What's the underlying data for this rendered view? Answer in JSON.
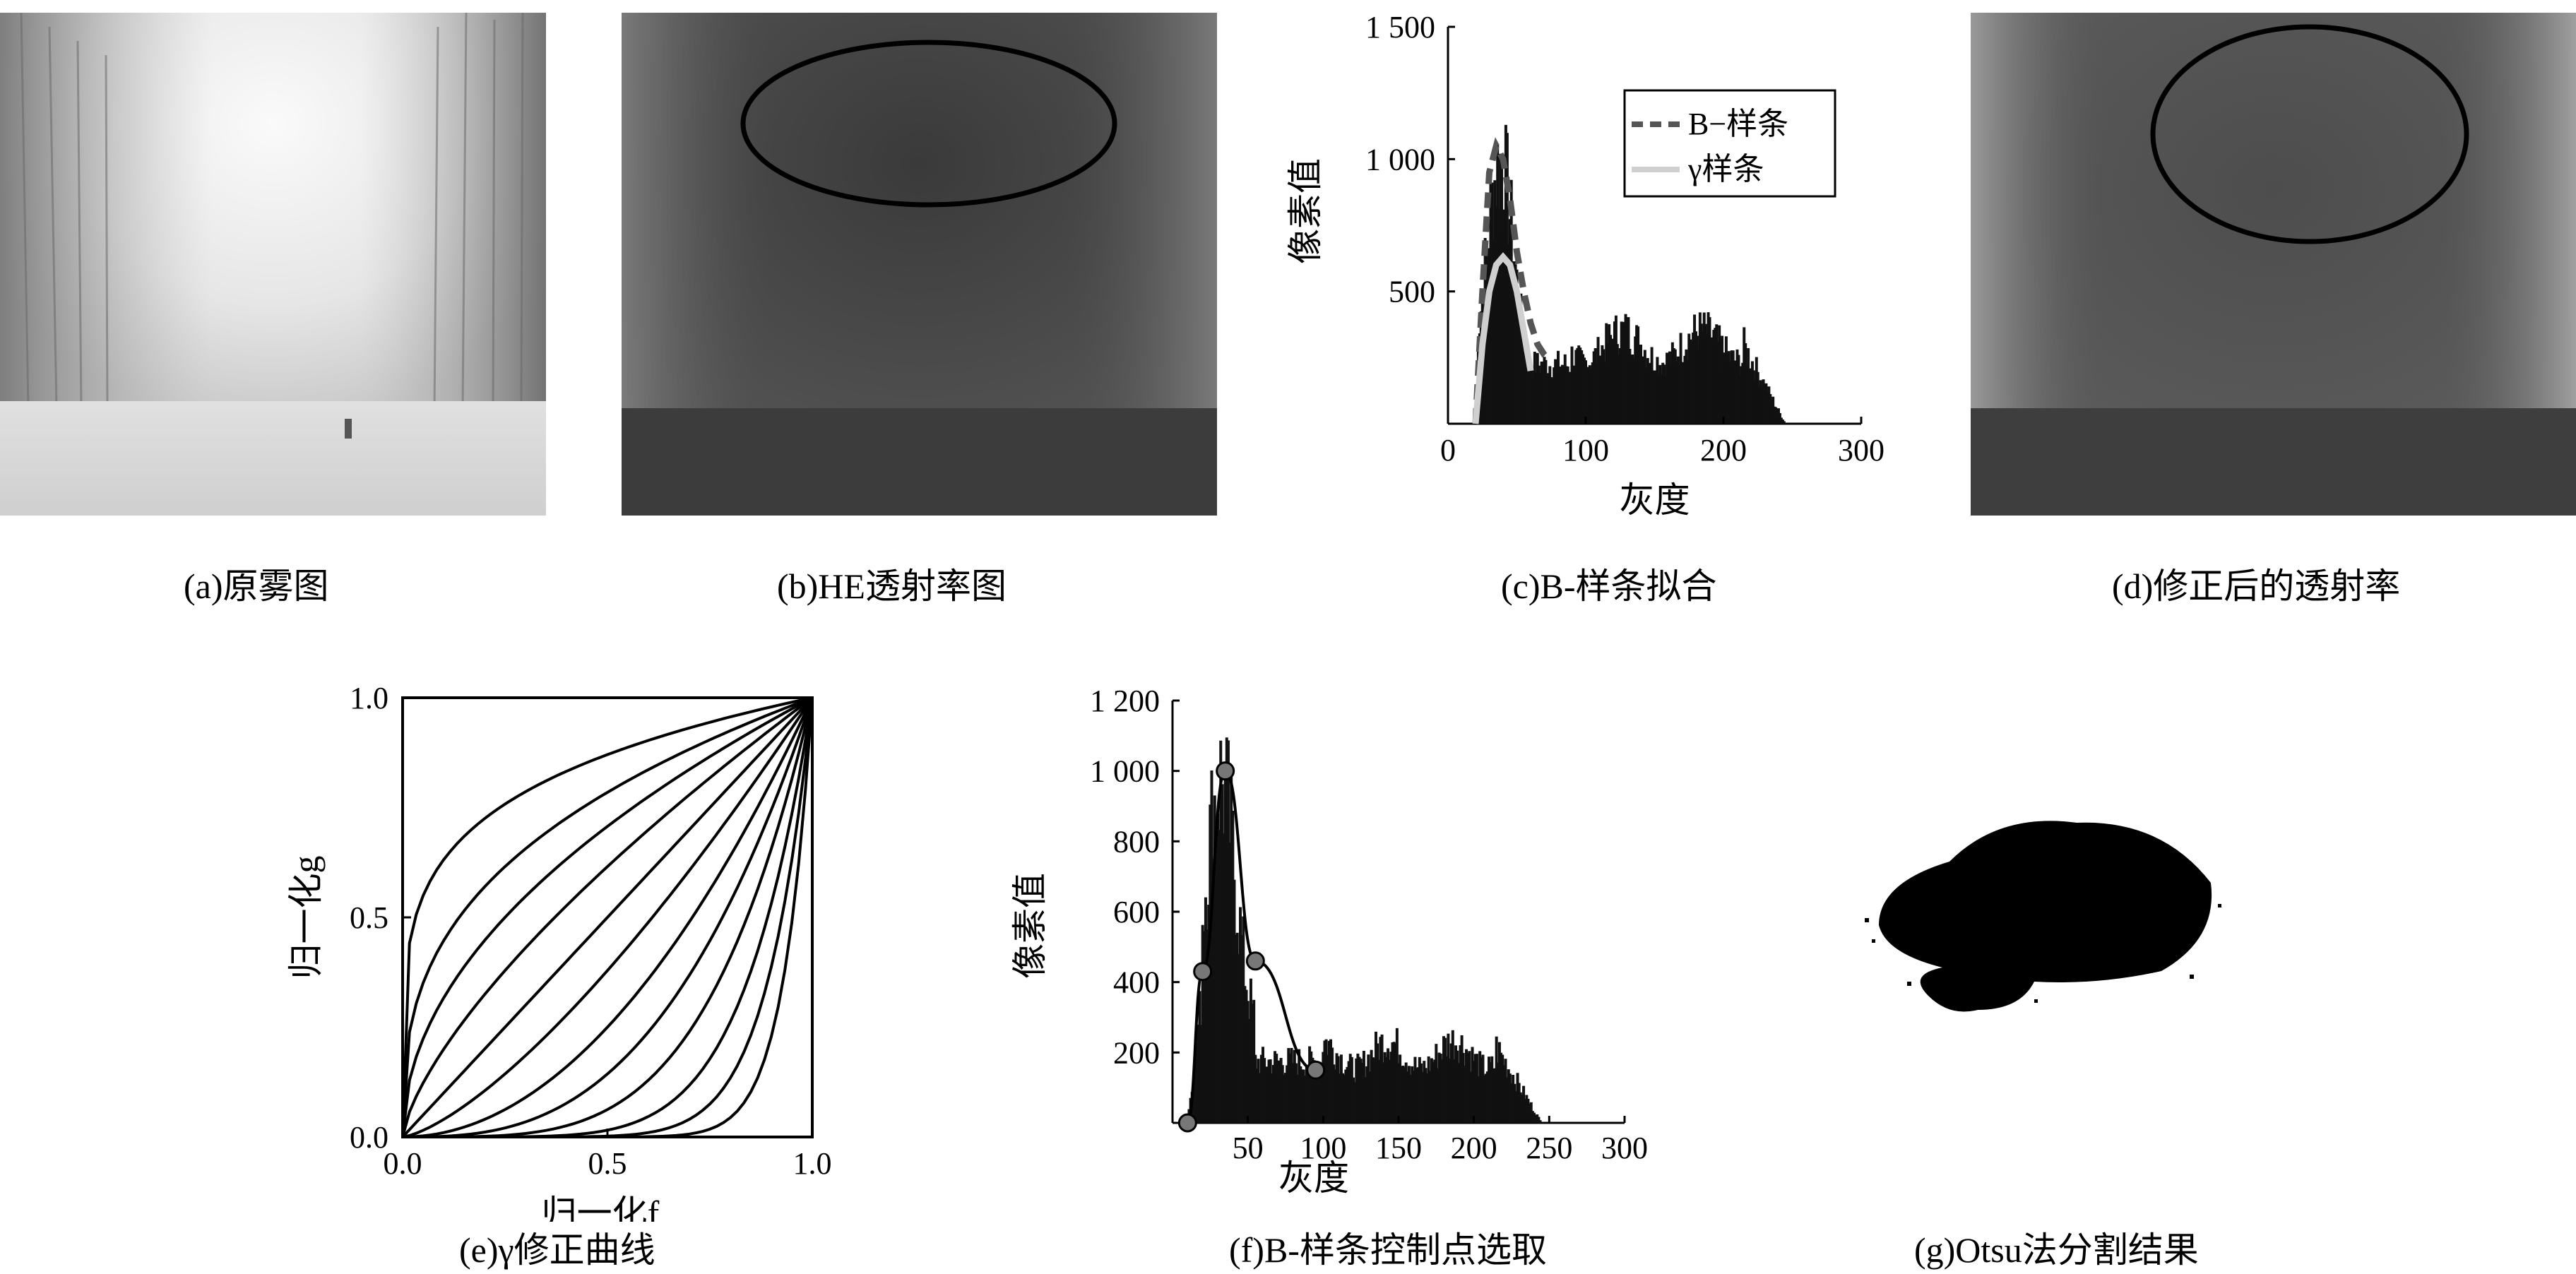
{
  "captions": {
    "a": "(a)原雾图",
    "b": "(b)HE透射率图",
    "c": "(c)B-样条拟合",
    "d": "(d)修正后的透射率",
    "e": "(e)γ修正曲线",
    "f": "(f)B-样条控制点选取",
    "g": "(g)Otsu法分割结果"
  },
  "chart_data": [
    {
      "id": "c",
      "type": "bar",
      "xlabel": "灰度",
      "ylabel": "像素值",
      "xlim": [
        0,
        300
      ],
      "ylim": [
        0,
        1500
      ],
      "xticks": [
        "0",
        "100",
        "200",
        "300"
      ],
      "yticks": [
        "500",
        "1 000",
        "1 500"
      ],
      "legend": {
        "placement": "top-right",
        "entries": [
          "B−样条",
          "γ样条"
        ]
      },
      "histogram": {
        "x_range": [
          20,
          245
        ]
      },
      "series": [
        {
          "name": "B−样条",
          "style": "dashed",
          "x": [
            20,
            25,
            30,
            35,
            40,
            45,
            50,
            55,
            60,
            65,
            70,
            75
          ],
          "values": [
            0,
            500,
            950,
            1050,
            1000,
            850,
            650,
            500,
            380,
            300,
            260,
            240
          ]
        },
        {
          "name": "γ样条",
          "style": "solid-light",
          "x": [
            20,
            25,
            30,
            35,
            40,
            45,
            50,
            55,
            60
          ],
          "values": [
            0,
            300,
            500,
            600,
            630,
            600,
            500,
            350,
            200
          ]
        }
      ]
    },
    {
      "id": "e",
      "type": "line",
      "xlabel": "归一化f",
      "ylabel": "归一化g",
      "xlim": [
        0,
        1
      ],
      "ylim": [
        0,
        1
      ],
      "xticks": [
        "0.0",
        "0.5",
        "1.0"
      ],
      "yticks": [
        "0.0",
        "0.5",
        "1.0"
      ],
      "gammas": [
        0.2,
        0.35,
        0.5,
        0.7,
        1.0,
        1.4,
        2.0,
        2.8,
        4.0,
        6.0,
        9.0,
        14.0
      ]
    },
    {
      "id": "f",
      "type": "bar",
      "xlabel": "灰度",
      "ylabel": "像素值",
      "xlim": [
        0,
        300
      ],
      "ylim": [
        0,
        1200
      ],
      "xticks": [
        "50",
        "100",
        "150",
        "200",
        "250",
        "300"
      ],
      "yticks": [
        "200",
        "400",
        "600",
        "800",
        "1 000",
        "1 200"
      ],
      "histogram": {
        "x_range": [
          10,
          245
        ]
      },
      "control_points": {
        "x": [
          10,
          20,
          35,
          55,
          95
        ],
        "y": [
          0,
          430,
          1000,
          460,
          150
        ]
      }
    }
  ],
  "labels": {
    "x0_c": "0"
  }
}
